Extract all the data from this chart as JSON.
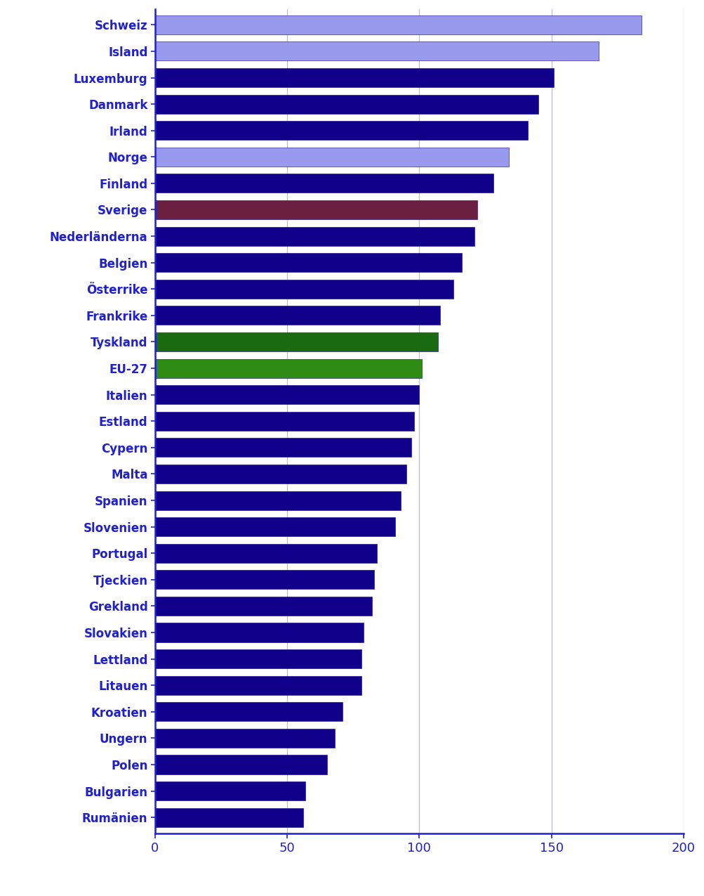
{
  "categories": [
    "Schweiz",
    "Island",
    "Luxemburg",
    "Danmark",
    "Irland",
    "Norge",
    "Finland",
    "Sverige",
    "Nederländerna",
    "Belgien",
    "Österrike",
    "Frankrike",
    "Tyskland",
    "EU-27",
    "Italien",
    "Estland",
    "Cypern",
    "Malta",
    "Spanien",
    "Slovenien",
    "Portugal",
    "Tjeckien",
    "Grekland",
    "Slovakien",
    "Lettland",
    "Litauen",
    "Kroatien",
    "Ungern",
    "Polen",
    "Bulgarien",
    "Rumänien"
  ],
  "values": [
    184,
    168,
    151,
    145,
    141,
    134,
    128,
    122,
    121,
    116,
    113,
    108,
    107,
    101,
    100,
    98,
    97,
    95,
    93,
    91,
    84,
    83,
    82,
    79,
    78,
    78,
    71,
    68,
    65,
    57,
    56
  ],
  "colors": [
    "#9999EE",
    "#9999EE",
    "#10008A",
    "#10008A",
    "#10008A",
    "#9999EE",
    "#10008A",
    "#6B2040",
    "#10008A",
    "#10008A",
    "#10008A",
    "#10008A",
    "#1A6B10",
    "#2E8B14",
    "#10008A",
    "#10008A",
    "#10008A",
    "#10008A",
    "#10008A",
    "#10008A",
    "#10008A",
    "#10008A",
    "#10008A",
    "#10008A",
    "#10008A",
    "#10008A",
    "#10008A",
    "#10008A",
    "#10008A",
    "#10008A",
    "#10008A"
  ],
  "xlim": [
    0,
    200
  ],
  "xticks": [
    0,
    50,
    100,
    150,
    200
  ],
  "background_color": "#ffffff",
  "bar_edge_color": "#10008A",
  "label_color": "#2020CC",
  "grid_color": "#bbbbdd",
  "axis_color": "#2020CC",
  "light_blue": "#9999EE",
  "dark_blue": "#10008A",
  "purple": "#6B2040",
  "green": "#2E8B14",
  "label_fontsize": 12,
  "tick_fontsize": 13
}
